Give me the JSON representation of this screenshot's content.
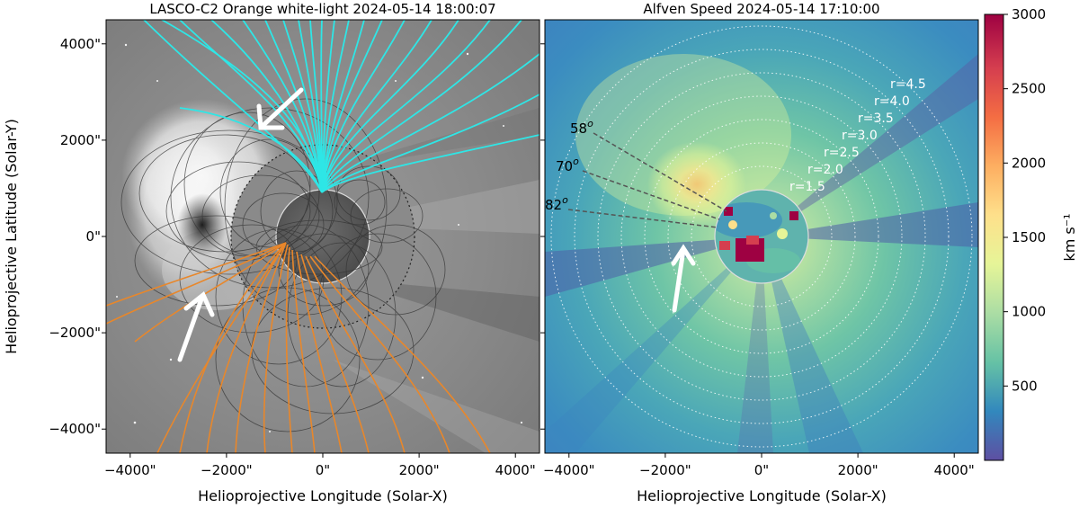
{
  "left_panel": {
    "title": "LASCO-C2 Orange white-light 2024-05-14 18:00:07",
    "ylabel": "Helioprojective Latitude (Solar-Y)",
    "xlabel": "Helioprojective Longitude (Solar-X)",
    "xticks": [
      "−4000\"",
      "−2000\"",
      "0\"",
      "2000\"",
      "4000\""
    ],
    "yticks": [
      "4000\"",
      "2000\"",
      "0\"",
      "−2000\"",
      "−4000\""
    ]
  },
  "right_panel": {
    "title": "Alfven Speed 2024-05-14 17:10:00",
    "xlabel": "Helioprojective Longitude (Solar-X)",
    "xticks": [
      "−4000\"",
      "−2000\"",
      "0\"",
      "2000\"",
      "4000\""
    ],
    "radius_labels": [
      "r=1.5",
      "r=2.0",
      "r=2.5",
      "r=3.0",
      "r=3.5",
      "r=4.0",
      "r=4.5"
    ],
    "angle_labels": [
      "58",
      "70",
      "82"
    ],
    "angle_superscript": "o"
  },
  "colorbar": {
    "label": "km s⁻¹",
    "ticks": [
      "3000",
      "2500",
      "2000",
      "1500",
      "1000",
      "500"
    ],
    "range": [
      0,
      3000
    ],
    "colormap": [
      "#5e4fa2",
      "#3288bd",
      "#66c2a5",
      "#abdda4",
      "#e6f598",
      "#fee08b",
      "#fdae61",
      "#f46d43",
      "#d53e4f",
      "#9e0142"
    ]
  },
  "colors": {
    "open_field_north": "#2ee6e6",
    "open_field_south": "#e8872b",
    "closed_loops": "#333333",
    "arrow": "#ffffff"
  },
  "axes": {
    "x_range": [
      -4500,
      4500
    ],
    "y_range": [
      -4500,
      4500
    ],
    "solar_radius_arcsec": 960
  }
}
